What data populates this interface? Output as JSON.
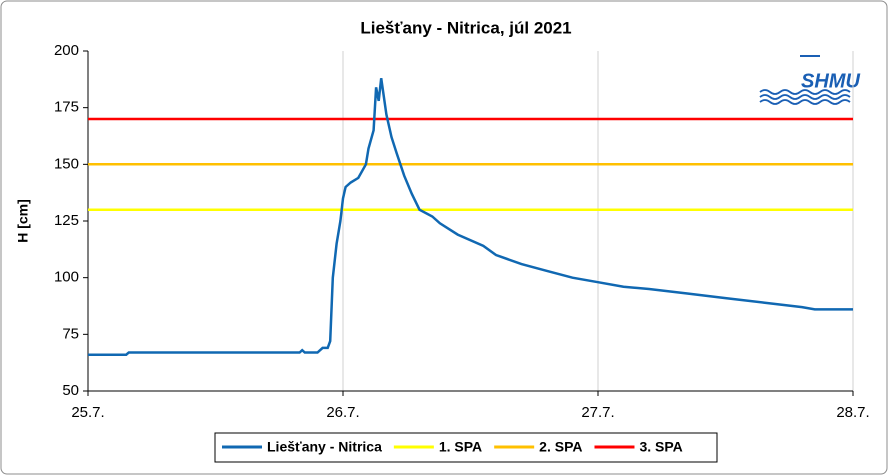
{
  "chart_data": {
    "type": "line",
    "title": "Liešťany - Nitrica, júl 2021",
    "y_label": "H [cm]",
    "logo_text": "SHMU",
    "xlim": [
      25,
      28
    ],
    "xticks": [
      {
        "value": 25,
        "label": "25.7."
      },
      {
        "value": 26,
        "label": "26.7."
      },
      {
        "value": 27,
        "label": "27.7."
      },
      {
        "value": 28,
        "label": "28.7."
      }
    ],
    "ylim": [
      50,
      200
    ],
    "yticks": [
      50,
      75,
      100,
      125,
      150,
      175,
      200
    ],
    "grid": "x",
    "legend": "bottom",
    "series": [
      {
        "name": "Liešťany - Nitrica",
        "color": "#1068b2",
        "x": [
          25.0,
          25.15,
          25.16,
          25.17,
          25.5,
          25.83,
          25.84,
          25.85,
          25.9,
          25.92,
          25.94,
          25.95,
          25.96,
          25.975,
          25.99,
          26.0,
          26.01,
          26.03,
          26.06,
          26.09,
          26.1,
          26.12,
          26.13,
          26.14,
          26.15,
          26.17,
          26.19,
          26.21,
          26.24,
          26.27,
          26.3,
          26.35,
          26.38,
          26.45,
          26.55,
          26.6,
          26.7,
          26.8,
          26.9,
          27.0,
          27.1,
          27.2,
          27.35,
          27.5,
          27.65,
          27.8,
          27.85,
          28.0
        ],
        "values": [
          66,
          66,
          67,
          67,
          67,
          67,
          68,
          67,
          67,
          69,
          69,
          72,
          100,
          115,
          125,
          135,
          140,
          142,
          144,
          150,
          157,
          165,
          184,
          178,
          188,
          172,
          162,
          155,
          145,
          137,
          130,
          127,
          124,
          119,
          114,
          110,
          106,
          103,
          100,
          98,
          96,
          95,
          93,
          91,
          89,
          87,
          86,
          86
        ]
      },
      {
        "name": "1. SPA",
        "color": "#ffff00",
        "x": [
          25,
          28
        ],
        "values": [
          130,
          130
        ]
      },
      {
        "name": "2. SPA",
        "color": "#ffc000",
        "x": [
          25,
          28
        ],
        "values": [
          150,
          150
        ]
      },
      {
        "name": "3. SPA",
        "color": "#ff0000",
        "x": [
          25,
          28
        ],
        "values": [
          170,
          170
        ]
      }
    ]
  }
}
